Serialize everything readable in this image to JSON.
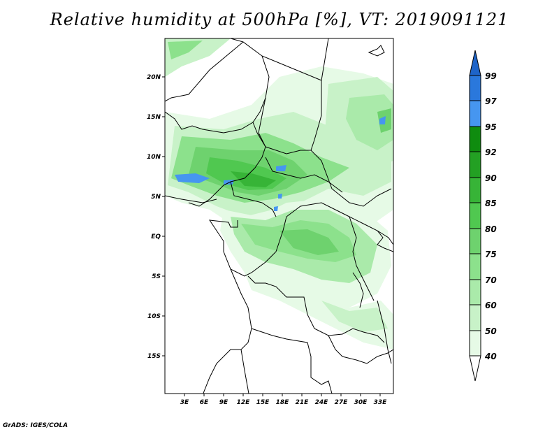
{
  "title": "Relative humidity at 500hPa [%], VT: 2019091121",
  "credit": "GrADS: IGES/COLA",
  "map": {
    "lat_labels": [
      "20N",
      "15N",
      "10N",
      "5N",
      "EQ",
      "5S",
      "10S",
      "15S"
    ],
    "lon_labels": [
      "3E",
      "6E",
      "9E",
      "12E",
      "15E",
      "18E",
      "21E",
      "24E",
      "27E",
      "30E",
      "33E"
    ]
  },
  "colorbar": {
    "labels": [
      "99",
      "97",
      "95",
      "92",
      "90",
      "85",
      "80",
      "75",
      "70",
      "60",
      "50",
      "40"
    ],
    "colors": [
      "#1e64c8",
      "#2a78dc",
      "#4696f0",
      "#0f8c0f",
      "#23a023",
      "#37b437",
      "#50c850",
      "#6ed26e",
      "#8ce18c",
      "#aaeaaa",
      "#c8f2c8",
      "#e6fae6"
    ]
  }
}
